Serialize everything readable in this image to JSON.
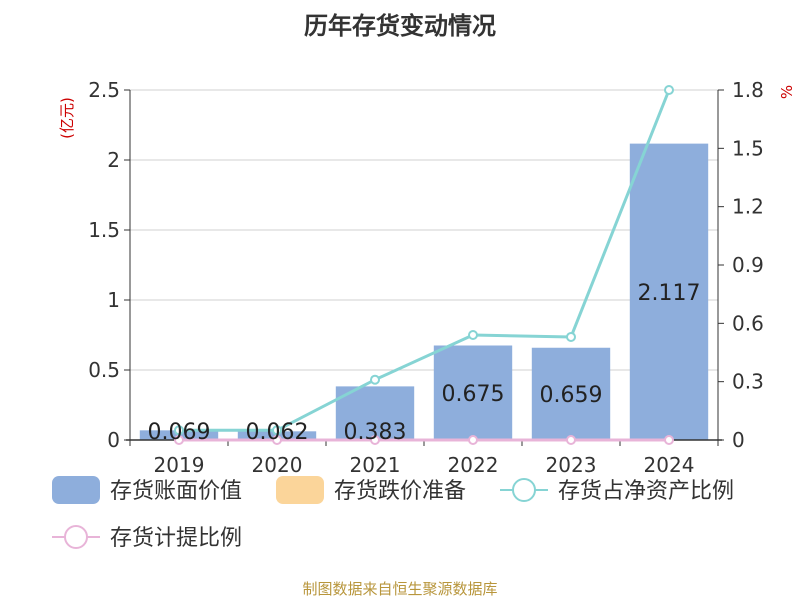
{
  "chart_data": {
    "type": "bar",
    "title": "历年存货变动情况",
    "categories": [
      "2019",
      "2020",
      "2021",
      "2022",
      "2023",
      "2024"
    ],
    "y_left": {
      "unit_label": "(亿元)",
      "ylim": [
        0,
        2.5
      ],
      "ticks": [
        "0",
        "0.5",
        "1",
        "1.5",
        "2",
        "2.5"
      ]
    },
    "y_right": {
      "unit_label": "%",
      "ylim": [
        0,
        1.8
      ],
      "ticks": [
        "0",
        "0.3",
        "0.6",
        "0.9",
        "1.2",
        "1.5",
        "1.8"
      ]
    },
    "series": [
      {
        "name": "存货账面价值",
        "kind": "bar",
        "axis": "left",
        "color": "#8eaedc",
        "values": [
          0.069,
          0.062,
          0.383,
          0.675,
          0.659,
          2.117
        ],
        "labels": [
          "0.069",
          "0.062",
          "0.383",
          "0.675",
          "0.659",
          "2.117"
        ]
      },
      {
        "name": "存货跌价准备",
        "kind": "bar",
        "axis": "left",
        "color": "#fbd59a",
        "values": [
          0,
          0,
          0,
          0,
          0,
          0
        ]
      },
      {
        "name": "存货占净资产比例",
        "kind": "line",
        "axis": "right",
        "color": "#86d4d4",
        "values": [
          0.05,
          0.05,
          0.31,
          0.54,
          0.53,
          1.8
        ]
      },
      {
        "name": "存货计提比例",
        "kind": "line",
        "axis": "right",
        "color": "#e8b4d8",
        "values": [
          0,
          0,
          0,
          0,
          0,
          0
        ]
      }
    ],
    "grid": true,
    "legend_position": "bottom"
  },
  "footer": {
    "source": "制图数据来自恒生聚源数据库"
  }
}
